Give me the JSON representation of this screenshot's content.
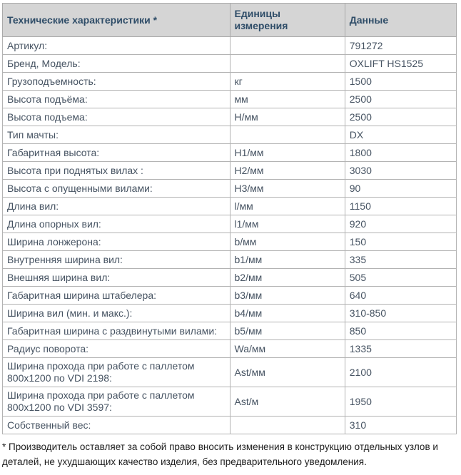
{
  "colors": {
    "header_bg": "#d5d5d5",
    "header_text": "#2f4d68",
    "body_text": "#465362",
    "border": "#b3b3b3",
    "row_bg": "#ffffff",
    "footnote_text": "#1d1d1d"
  },
  "table": {
    "columns": [
      "Технические характеристики *",
      "Единицы измерения",
      "Данные"
    ],
    "rows": [
      {
        "name": "Артикул:",
        "unit": "",
        "value": "791272"
      },
      {
        "name": "Бренд, Модель:",
        "unit": "",
        "value": "OXLIFT HS1525"
      },
      {
        "name": "Грузоподъемность:",
        "unit": "кг",
        "value": "1500"
      },
      {
        "name": "Высота подъёма:",
        "unit": "мм",
        "value": "2500"
      },
      {
        "name": "Высота подъема:",
        "unit": "Н/мм",
        "value": "2500"
      },
      {
        "name": "Тип мачты:",
        "unit": "",
        "value": "DX"
      },
      {
        "name": "Габаритная высота:",
        "unit": "Н1/мм",
        "value": "1800"
      },
      {
        "name": "Высота при поднятых вилах :",
        "unit": "Н2/мм",
        "value": "3030"
      },
      {
        "name": "Высота с опущенными вилами:",
        "unit": "Н3/мм",
        "value": "90"
      },
      {
        "name": "Длина вил:",
        "unit": "l/мм",
        "value": "1150"
      },
      {
        "name": "Длина опорных вил:",
        "unit": "l1/мм",
        "value": "920"
      },
      {
        "name": "Ширина лонжерона:",
        "unit": "b/мм",
        "value": "150"
      },
      {
        "name": "Внутренняя ширина вил:",
        "unit": "b1/мм",
        "value": "335"
      },
      {
        "name": "Внешняя ширина вил:",
        "unit": "b2/мм",
        "value": "505"
      },
      {
        "name": "Габаритная ширина штабелера:",
        "unit": "b3/мм",
        "value": "640"
      },
      {
        "name": "Ширина вил (мин. и макс.):",
        "unit": "b4/мм",
        "value": "310-850"
      },
      {
        "name": "Габаритная ширина с раздвинутыми вилами:",
        "unit": "b5/мм",
        "value": "850"
      },
      {
        "name": "Радиус поворота:",
        "unit": "Wa/мм",
        "value": "1335"
      },
      {
        "name": "Ширина прохода при работе с паллетом 800x1200 по VDI 2198:",
        "unit": "Ast/мм",
        "value": "2100"
      },
      {
        "name": "Ширина прохода при работе с паллетом 800x1200 по VDI 3597:",
        "unit": "Ast/м",
        "value": "1950"
      },
      {
        "name": "Собственный вес:",
        "unit": "",
        "value": "310"
      }
    ]
  },
  "footnote": "* Производитель оставляет за собой право вносить изменения в конструкцию отдельных узлов и деталей, не ухудшающих качество изделия, без предварительного уведомления."
}
